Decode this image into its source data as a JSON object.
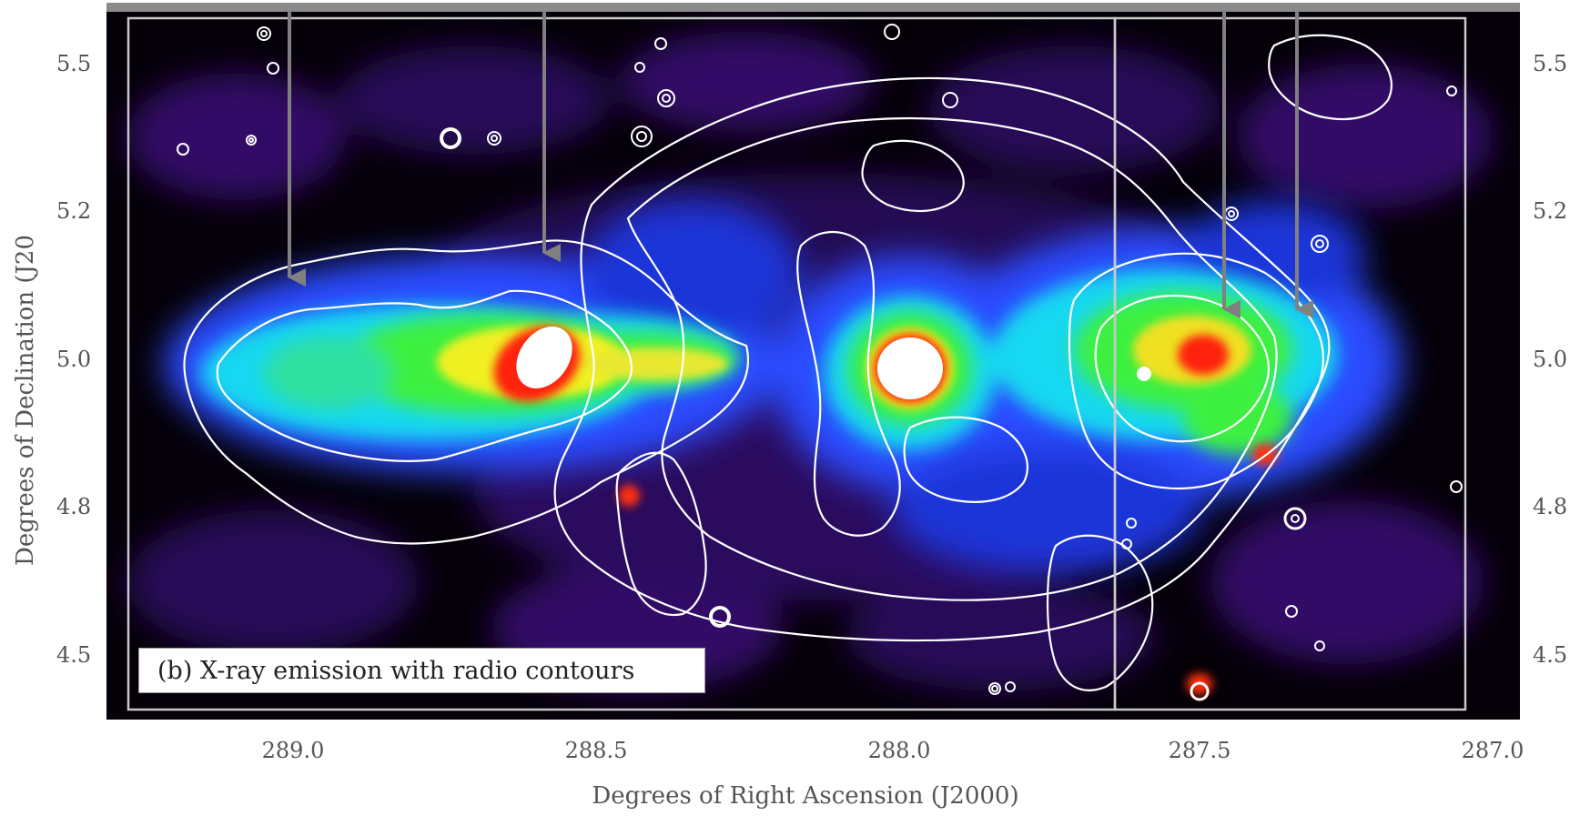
{
  "panel_caption": "(b) X-ray emission with radio contours",
  "x_axis": {
    "title": "Degrees of Right Ascension (J2000)",
    "ticks": [
      "289.0",
      "288.5",
      "288.0",
      "287.5",
      "287.0"
    ]
  },
  "y_axis": {
    "title": "Degrees of Declination (J20",
    "ticks_left": [
      "5.5",
      "5.2",
      "5.0",
      "4.8",
      "4.5"
    ],
    "ticks_right": [
      "5.5",
      "5.2",
      "5.0",
      "4.8",
      "4.5"
    ]
  },
  "colors": {
    "background": "#000000",
    "contour": "#ffffff",
    "arrow": "#808080",
    "frame": "#c8c8c8"
  },
  "colormap": [
    "black",
    "purple",
    "blue",
    "cyan",
    "green",
    "yellow",
    "red",
    "white"
  ],
  "pointer_count": 4
}
